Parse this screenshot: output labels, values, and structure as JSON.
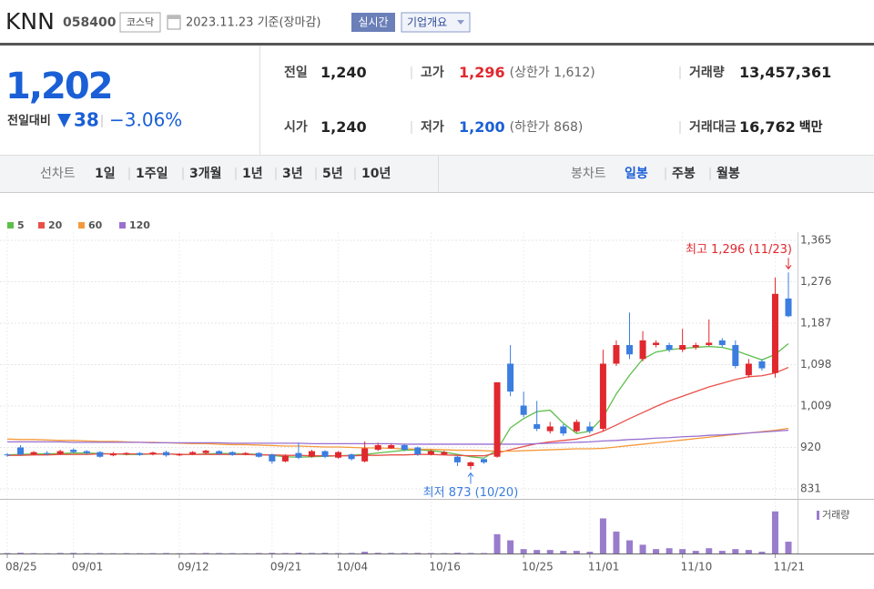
{
  "header": {
    "name": "KNN",
    "code": "058400",
    "market": "코스닥",
    "date": "2023.11.23 기준(장마감)",
    "realtime": "실시간",
    "overview": "기업개요"
  },
  "summary": {
    "price": "1,202",
    "change_label": "전일대비",
    "change": "38",
    "change_rate": "−3.06%"
  },
  "quote": {
    "rows": [
      [
        {
          "label": "전일",
          "value": "1,240"
        },
        {
          "label": "고가",
          "value": "1,296",
          "note": "(상한가 1,612)",
          "color": "#e0282e"
        },
        {
          "label": "거래량",
          "value": "13,457,361"
        }
      ],
      [
        {
          "label": "시가",
          "value": "1,240"
        },
        {
          "label": "저가",
          "value": "1,200",
          "note": "(하한가 868)",
          "color": "#1a5fd6"
        },
        {
          "label": "거래대금",
          "value": "16,762",
          "unit": "백만"
        }
      ]
    ]
  },
  "line_tabs": {
    "label": "선차트",
    "items": [
      "1일",
      "1주일",
      "3개월",
      "1년",
      "3년",
      "5년",
      "10년"
    ]
  },
  "candle_tabs": {
    "label": "봉차트",
    "items": [
      "일봉",
      "주봉",
      "월봉"
    ],
    "selected": 0
  },
  "chart_data": {
    "type": "candlestick",
    "categories": [
      "08/25",
      null,
      null,
      null,
      null,
      "09/01",
      null,
      null,
      null,
      null,
      null,
      null,
      null,
      "09/12",
      null,
      null,
      null,
      null,
      null,
      null,
      "09/21",
      null,
      null,
      null,
      null,
      "10/04",
      null,
      null,
      null,
      null,
      null,
      null,
      "10/16",
      null,
      null,
      null,
      null,
      null,
      null,
      "10/25",
      null,
      null,
      null,
      null,
      "11/01",
      null,
      null,
      null,
      null,
      null,
      null,
      "11/10",
      null,
      null,
      null,
      null,
      null,
      null,
      "11/21",
      null
    ],
    "open": [
      905,
      920,
      905,
      908,
      906,
      915,
      912,
      910,
      903,
      905,
      908,
      905,
      910,
      903,
      906,
      908,
      912,
      910,
      905,
      908,
      905,
      890,
      908,
      900,
      912,
      898,
      905,
      890,
      915,
      918,
      925,
      920,
      905,
      905,
      900,
      880,
      895,
      900,
      1100,
      1010,
      970,
      955,
      965,
      955,
      965,
      960,
      1100,
      1140,
      1110,
      1140,
      1140,
      1130,
      1135,
      1140,
      1150,
      1140,
      1075,
      1105,
      1080,
      1240
    ],
    "high": [
      908,
      925,
      912,
      912,
      915,
      918,
      914,
      912,
      910,
      910,
      910,
      911,
      913,
      908,
      912,
      915,
      914,
      912,
      910,
      910,
      907,
      905,
      930,
      915,
      914,
      912,
      907,
      933,
      930,
      928,
      927,
      922,
      915,
      913,
      902,
      890,
      895,
      1060,
      1140,
      1040,
      1020,
      975,
      970,
      980,
      975,
      1130,
      1150,
      1210,
      1170,
      1150,
      1145,
      1175,
      1145,
      1195,
      1155,
      1150,
      1110,
      1110,
      1285,
      1296
    ],
    "low": [
      900,
      903,
      903,
      903,
      904,
      908,
      905,
      898,
      901,
      903,
      902,
      903,
      900,
      901,
      904,
      906,
      904,
      902,
      903,
      898,
      885,
      888,
      895,
      898,
      897,
      896,
      892,
      888,
      912,
      917,
      912,
      902,
      903,
      904,
      880,
      873,
      885,
      898,
      1030,
      985,
      955,
      950,
      945,
      952,
      950,
      955,
      1095,
      1110,
      1105,
      1135,
      1125,
      1125,
      1130,
      1138,
      1135,
      1090,
      1070,
      1085,
      1070,
      1200
    ],
    "close": [
      903,
      905,
      910,
      906,
      912,
      910,
      908,
      900,
      907,
      908,
      904,
      909,
      903,
      906,
      910,
      913,
      906,
      904,
      908,
      900,
      890,
      902,
      898,
      912,
      900,
      910,
      895,
      918,
      925,
      925,
      915,
      905,
      912,
      910,
      888,
      888,
      888,
      1060,
      1040,
      990,
      960,
      965,
      950,
      975,
      955,
      1100,
      1140,
      1120,
      1150,
      1145,
      1130,
      1140,
      1140,
      1145,
      1140,
      1095,
      1100,
      1090,
      1250,
      1202
    ],
    "up_color": "#e0282e",
    "down_color": "#3b7de0",
    "series": [
      {
        "name": "5",
        "color": "#5cbf4a",
        "values": [
          904,
          905,
          906,
          906,
          907,
          908,
          908,
          907,
          906,
          905,
          905,
          906,
          906,
          905,
          905,
          906,
          907,
          907,
          906,
          905,
          903,
          900,
          899,
          900,
          901,
          902,
          903,
          905,
          908,
          911,
          914,
          915,
          913,
          910,
          905,
          900,
          897,
          915,
          962,
          982,
          997,
          1000,
          972,
          950,
          955,
          985,
          1035,
          1075,
          1110,
          1125,
          1130,
          1133,
          1135,
          1137,
          1135,
          1128,
          1118,
          1108,
          1120,
          1143
        ]
      },
      {
        "name": "20",
        "color": "#e8504a",
        "values": [
          903,
          903,
          904,
          904,
          905,
          905,
          905,
          906,
          906,
          906,
          906,
          906,
          906,
          905,
          905,
          905,
          905,
          905,
          905,
          904,
          904,
          903,
          903,
          902,
          902,
          902,
          902,
          903,
          903,
          904,
          904,
          905,
          905,
          904,
          903,
          902,
          902,
          908,
          915,
          922,
          928,
          932,
          935,
          938,
          945,
          955,
          968,
          982,
          995,
          1008,
          1020,
          1030,
          1040,
          1050,
          1058,
          1066,
          1072,
          1074,
          1080,
          1092
        ]
      },
      {
        "name": "60",
        "color": "#f59a3a",
        "values": [
          938,
          937,
          937,
          936,
          935,
          935,
          934,
          933,
          933,
          932,
          931,
          931,
          930,
          929,
          928,
          928,
          927,
          926,
          926,
          925,
          924,
          923,
          923,
          922,
          921,
          921,
          920,
          919,
          919,
          918,
          917,
          916,
          916,
          915,
          914,
          914,
          913,
          912,
          912,
          913,
          914,
          915,
          916,
          917,
          917,
          918,
          921,
          924,
          927,
          930,
          933,
          936,
          939,
          942,
          945,
          948,
          951,
          954,
          957,
          961
        ]
      },
      {
        "name": "120",
        "color": "#9a6fd0",
        "values": [
          932,
          932,
          932,
          932,
          932,
          931,
          931,
          931,
          931,
          931,
          931,
          930,
          930,
          930,
          930,
          930,
          930,
          929,
          929,
          929,
          929,
          929,
          929,
          928,
          928,
          928,
          928,
          928,
          928,
          928,
          927,
          927,
          927,
          927,
          927,
          927,
          927,
          927,
          927,
          927,
          928,
          929,
          930,
          931,
          932,
          934,
          935,
          937,
          938,
          940,
          941,
          943,
          944,
          946,
          947,
          949,
          951,
          953,
          955,
          957
        ]
      }
    ],
    "ylim": [
      831,
      1365
    ],
    "yticks": [
      {
        "value": 1365,
        "label": "1,365"
      },
      {
        "value": 1276,
        "label": "1,276"
      },
      {
        "value": 1187,
        "label": "1,187"
      },
      {
        "value": 1098,
        "label": "1,098"
      },
      {
        "value": 1009,
        "label": "1,009"
      },
      920,
      831
    ],
    "grid": true,
    "high_annotation": "최고 1,296 (11/23)",
    "low_annotation": "최저 873 (10/20)",
    "volume": {
      "name": "거래량",
      "color": "#9a7ccc",
      "ylim": [
        0,
        55000000
      ],
      "values": [
        500000,
        800000,
        400000,
        300000,
        600000,
        700000,
        400000,
        500000,
        300000,
        400000,
        300000,
        400000,
        500000,
        300000,
        400000,
        600000,
        500000,
        400000,
        300000,
        500000,
        700000,
        500000,
        900000,
        600000,
        700000,
        500000,
        600000,
        2000000,
        800000,
        700000,
        600000,
        700000,
        500000,
        400000,
        900000,
        600000,
        500000,
        22000000,
        15000000,
        5000000,
        4000000,
        4000000,
        3000000,
        3000000,
        2000000,
        40000000,
        25000000,
        15000000,
        10000000,
        5000000,
        6000000,
        5000000,
        3000000,
        6000000,
        3000000,
        5000000,
        4000000,
        2000000,
        48000000,
        13457361
      ]
    }
  }
}
